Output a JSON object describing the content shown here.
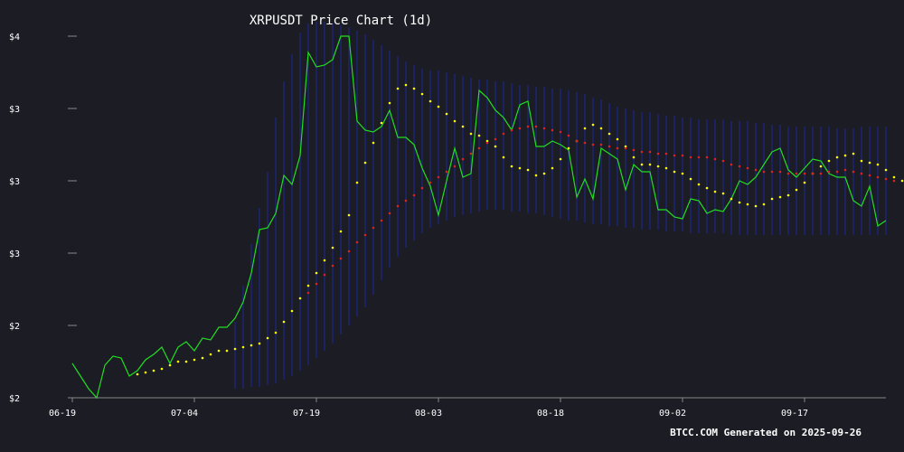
{
  "chart_data": {
    "type": "line",
    "title": "XRPUSDT Price Chart (1d)",
    "footer": "BTCC.COM Generated on 2025-09-26",
    "x_ticks": [
      "06-19",
      "07-04",
      "07-19",
      "08-03",
      "08-18",
      "09-02",
      "09-17"
    ],
    "y_tick_labels": [
      "$2",
      "$2",
      "$3",
      "$3",
      "$3",
      "$4"
    ],
    "y_tick_values": [
      2.0,
      2.4,
      2.8,
      3.2,
      3.6,
      4.0
    ],
    "ylim": [
      2.0,
      4.0
    ],
    "grid": false,
    "start_day": "06-19",
    "colors": {
      "background": "#1b1c24",
      "price": "#22dd22",
      "ma_short": "#ffff00",
      "ma_long": "#dd2222",
      "band": "#1e2ca8",
      "axis": "#888888",
      "text": "#ffffff"
    },
    "series": [
      {
        "kind": "price",
        "x_start": 0,
        "values": [
          2.19,
          2.12,
          2.05,
          2.0,
          2.18,
          2.23,
          2.22,
          2.12,
          2.15,
          2.21,
          2.24,
          2.28,
          2.19,
          2.28,
          2.31,
          2.26,
          2.33,
          2.32,
          2.39,
          2.39,
          2.44,
          2.53,
          2.69,
          2.93,
          2.94,
          3.02,
          3.23,
          3.18,
          3.34,
          3.91,
          3.83,
          3.84,
          3.87,
          4.0,
          4.0,
          3.53,
          3.48,
          3.47,
          3.5,
          3.59,
          3.44,
          3.44,
          3.4,
          3.27,
          3.17,
          3.01,
          3.2,
          3.38,
          3.22,
          3.24,
          3.7,
          3.66,
          3.59,
          3.55,
          3.48,
          3.62,
          3.64,
          3.39,
          3.39,
          3.42,
          3.4,
          3.37,
          3.11,
          3.21,
          3.1,
          3.38,
          3.35,
          3.32,
          3.15,
          3.29,
          3.25,
          3.25,
          3.04,
          3.04,
          3.0,
          2.99,
          3.1,
          3.09,
          3.02,
          3.04,
          3.03,
          3.1,
          3.2,
          3.18,
          3.22,
          3.29,
          3.36,
          3.38,
          3.26,
          3.22,
          3.27,
          3.32,
          3.31,
          3.24,
          3.22,
          3.22,
          3.09,
          3.06,
          3.17,
          2.95,
          2.98
        ]
      },
      {
        "kind": "ma_short",
        "x_start": 8,
        "values": [
          2.13,
          2.14,
          2.15,
          2.16,
          2.18,
          2.2,
          2.2,
          2.21,
          2.22,
          2.24,
          2.26,
          2.26,
          2.27,
          2.28,
          2.29,
          2.3,
          2.33,
          2.36,
          2.42,
          2.48,
          2.55,
          2.62,
          2.69,
          2.76,
          2.83,
          2.92,
          3.01,
          3.19,
          3.3,
          3.41,
          3.52,
          3.63,
          3.71,
          3.73,
          3.71,
          3.68,
          3.64,
          3.61,
          3.57,
          3.53,
          3.5,
          3.46,
          3.45,
          3.42,
          3.39,
          3.33,
          3.28,
          3.27,
          3.26,
          3.23,
          3.24,
          3.27,
          3.32,
          3.38,
          3.42,
          3.49,
          3.51,
          3.49,
          3.46,
          3.43,
          3.39,
          3.33,
          3.29,
          3.29,
          3.28,
          3.27,
          3.25,
          3.24,
          3.21,
          3.18,
          3.16,
          3.14,
          3.13,
          3.1,
          3.08,
          3.07,
          3.06,
          3.07,
          3.1,
          3.11,
          3.12,
          3.15,
          3.19,
          3.24,
          3.28,
          3.31,
          3.33,
          3.34,
          3.35,
          3.31,
          3.3,
          3.29,
          3.26,
          3.22,
          3.2,
          3.15,
          3.12
        ]
      },
      {
        "kind": "ma_long",
        "x_start": 29,
        "values": [
          2.58,
          2.63,
          2.68,
          2.73,
          2.77,
          2.81,
          2.86,
          2.9,
          2.94,
          2.98,
          3.02,
          3.06,
          3.09,
          3.12,
          3.16,
          3.19,
          3.22,
          3.25,
          3.28,
          3.32,
          3.35,
          3.38,
          3.41,
          3.43,
          3.46,
          3.48,
          3.49,
          3.5,
          3.5,
          3.49,
          3.48,
          3.47,
          3.45,
          3.42,
          3.41,
          3.4,
          3.4,
          3.39,
          3.38,
          3.38,
          3.37,
          3.36,
          3.36,
          3.35,
          3.35,
          3.34,
          3.34,
          3.33,
          3.33,
          3.33,
          3.32,
          3.31,
          3.29,
          3.28,
          3.27,
          3.26,
          3.25,
          3.25,
          3.25,
          3.24,
          3.24,
          3.24,
          3.24,
          3.24,
          3.25,
          3.25,
          3.26,
          3.25,
          3.24,
          3.23,
          3.22,
          3.21,
          3.2
        ]
      }
    ],
    "band": {
      "x_start": 20,
      "upper": [
        2.42,
        2.62,
        2.85,
        3.05,
        3.25,
        3.55,
        3.75,
        3.9,
        4.02,
        4.07,
        4.08,
        4.08,
        4.07,
        4.06,
        4.05,
        4.03,
        4.01,
        3.98,
        3.95,
        3.92,
        3.89,
        3.86,
        3.84,
        3.82,
        3.81,
        3.81,
        3.8,
        3.79,
        3.78,
        3.77,
        3.76,
        3.76,
        3.75,
        3.75,
        3.74,
        3.73,
        3.73,
        3.72,
        3.72,
        3.71,
        3.71,
        3.7,
        3.69,
        3.68,
        3.66,
        3.65,
        3.63,
        3.61,
        3.6,
        3.59,
        3.58,
        3.58,
        3.57,
        3.56,
        3.56,
        3.55,
        3.55,
        3.54,
        3.54,
        3.54,
        3.54,
        3.53,
        3.53,
        3.53,
        3.52,
        3.52,
        3.51,
        3.51,
        3.5,
        3.5,
        3.5,
        3.5,
        3.5,
        3.5,
        3.49,
        3.49,
        3.49,
        3.5,
        3.5,
        3.5,
        3.5
      ],
      "lower": [
        2.05,
        2.05,
        2.06,
        2.06,
        2.07,
        2.08,
        2.1,
        2.12,
        2.15,
        2.18,
        2.22,
        2.26,
        2.3,
        2.35,
        2.4,
        2.45,
        2.5,
        2.57,
        2.65,
        2.72,
        2.78,
        2.83,
        2.87,
        2.91,
        2.94,
        2.96,
        2.98,
        3.0,
        3.01,
        3.02,
        3.03,
        3.04,
        3.04,
        3.04,
        3.03,
        3.03,
        3.02,
        3.02,
        3.01,
        3.0,
        2.99,
        2.98,
        2.98,
        2.97,
        2.96,
        2.96,
        2.95,
        2.95,
        2.94,
        2.94,
        2.93,
        2.93,
        2.93,
        2.92,
        2.92,
        2.92,
        2.91,
        2.91,
        2.91,
        2.91,
        2.91,
        2.9,
        2.9,
        2.9,
        2.9,
        2.9,
        2.9,
        2.9,
        2.9,
        2.9,
        2.9,
        2.9,
        2.9,
        2.9,
        2.9,
        2.9,
        2.9,
        2.9,
        2.9,
        2.9,
        2.9
      ]
    }
  }
}
